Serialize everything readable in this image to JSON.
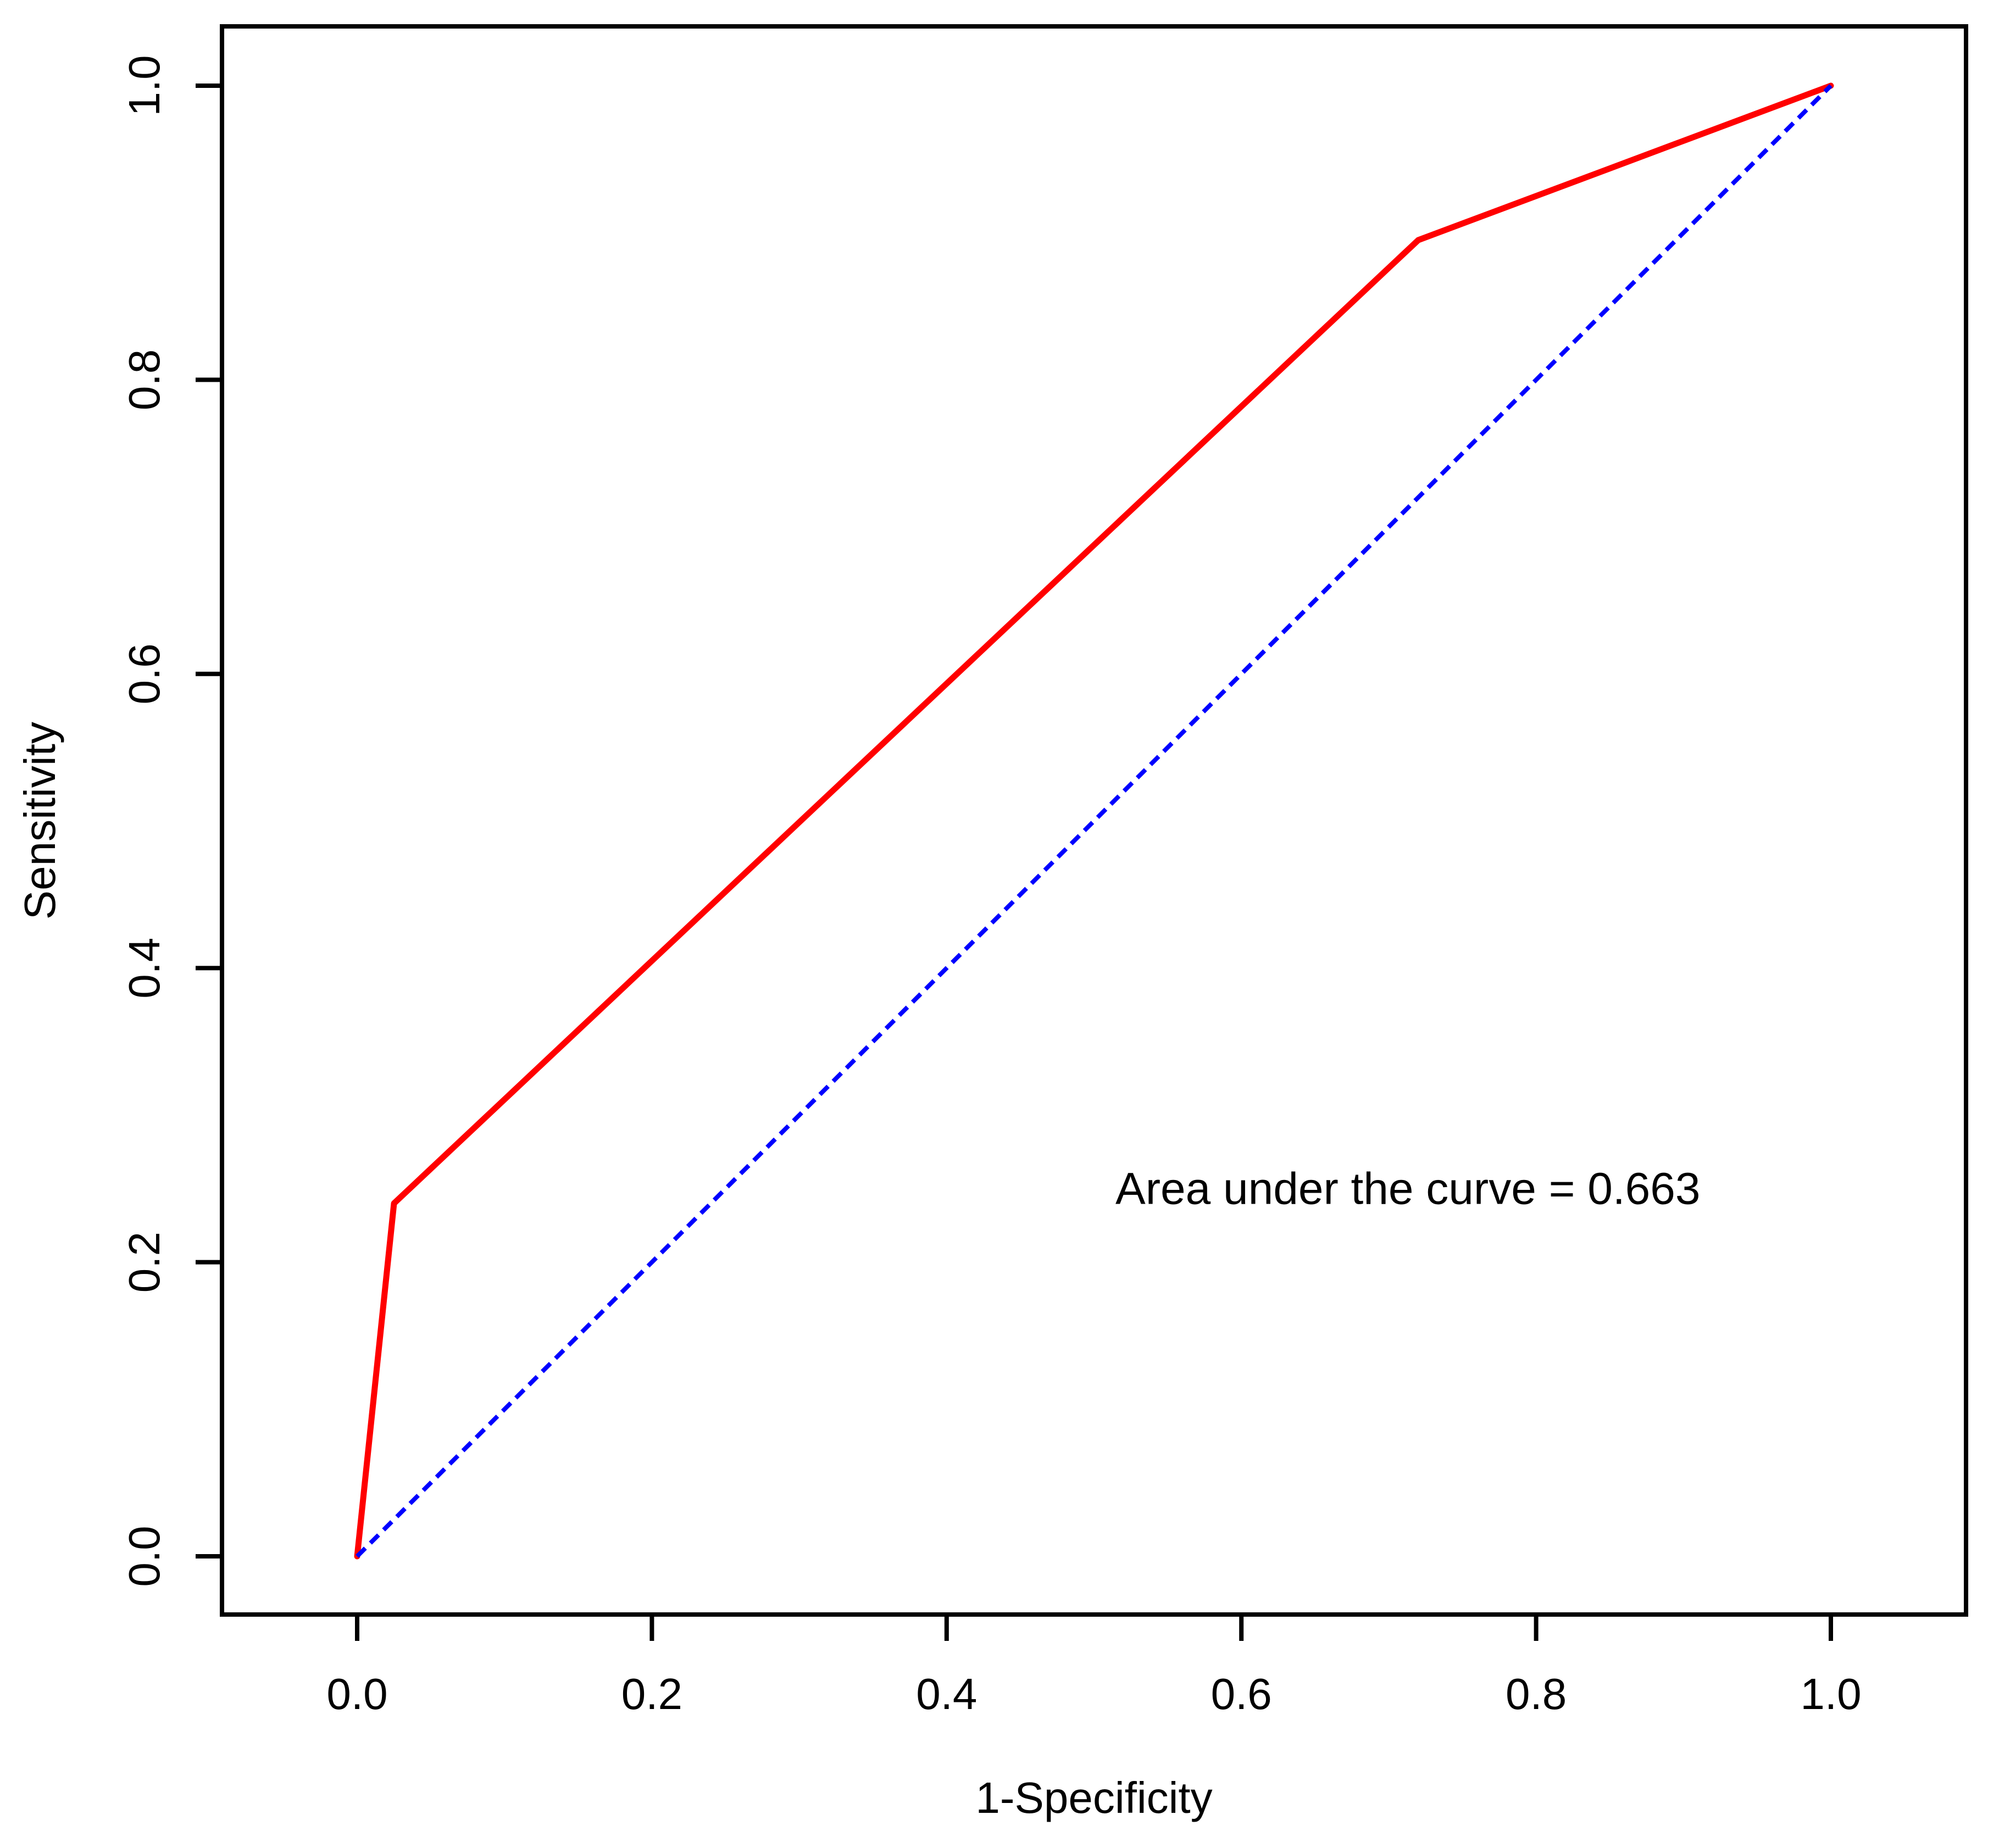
{
  "figure": {
    "background": "#ffffff",
    "axis_color": "#000000",
    "text_color": "#000000"
  },
  "chart_data": {
    "type": "line",
    "title": "",
    "xlabel": "1-Specificity",
    "ylabel": "Sensitivity",
    "xlim": [
      0,
      1
    ],
    "ylim": [
      0,
      1
    ],
    "x_ticks": [
      "0.0",
      "0.2",
      "0.4",
      "0.6",
      "0.8",
      "1.0"
    ],
    "y_ticks": [
      "0.0",
      "0.2",
      "0.4",
      "0.6",
      "0.8",
      "1.0"
    ],
    "grid": false,
    "legend_position": "none",
    "auc": 0.663,
    "annotation": {
      "text": "Area under the curve = 0.663",
      "x": 0.713,
      "y": 0.25
    },
    "series": [
      {
        "name": "roc-curve",
        "color": "#FF0000",
        "style": "solid",
        "x": [
          0,
          0.025,
          0.72,
          1
        ],
        "y": [
          0,
          0.24,
          0.895,
          1
        ]
      },
      {
        "name": "chance-diagonal",
        "color": "#0000FF",
        "style": "dashed",
        "x": [
          0,
          1
        ],
        "y": [
          0,
          1
        ]
      }
    ]
  }
}
